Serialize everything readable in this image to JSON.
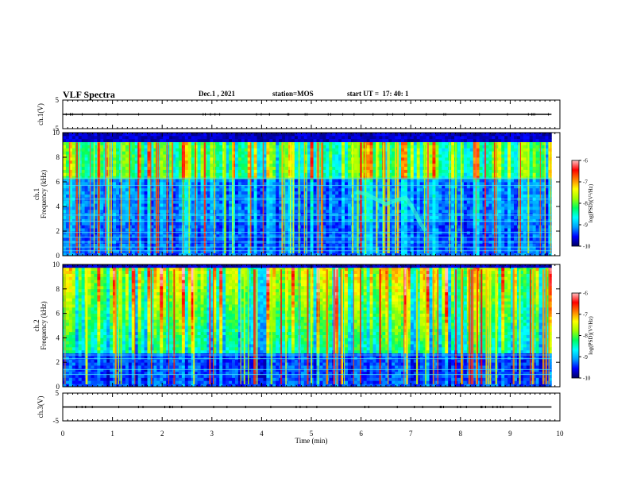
{
  "header": {
    "title": "VLF Spectra",
    "date": "Dec.1 , 2021",
    "station": "station=MOS",
    "start": "start UT =  17: 40: 1"
  },
  "colorbar": {
    "label": "log(PSD)(V²/Hz)",
    "ticks": [
      "-6",
      "-7",
      "-8",
      "-9",
      "-10"
    ],
    "range": [
      -10,
      -6
    ],
    "stops": [
      "#000060",
      "#0000ff",
      "#00a0ff",
      "#00ffff",
      "#00ff60",
      "#a0ff00",
      "#ffff00",
      "#ff8000",
      "#ff0000",
      "#ffc0c0"
    ]
  },
  "chart_data": [
    {
      "type": "line",
      "name": "ch1",
      "ylabel": "ch.1(V)",
      "ylim": [
        -5,
        5
      ],
      "ytick_labels": [
        "5",
        "-5"
      ],
      "x": [
        0,
        9.83
      ],
      "y": [
        0,
        0
      ]
    },
    {
      "type": "heatmap",
      "name": "spectrogram-ch1",
      "ylabel": "ch.1\nFrequency (kHz)",
      "ylabel_top": "ch.1",
      "ylabel_bottom": "Frequency (kHz)",
      "ylim": [
        0,
        10
      ],
      "xlim": [
        0,
        10
      ],
      "ytick_labels": [
        "0",
        "2",
        "4",
        "6",
        "8",
        "10"
      ],
      "data_xmax": 9.83,
      "zrange": [
        -10,
        -6
      ],
      "note_feature": "dispersive emission ~5.9–7.3 min from 5 to 2 kHz",
      "harmonic_lines_khz": [
        0.4,
        0.7,
        1.1,
        1.5,
        1.9,
        2.8,
        3.3,
        4.6,
        5.7,
        6.3
      ]
    },
    {
      "type": "heatmap",
      "name": "spectrogram-ch2",
      "ylabel_top": "ch.2",
      "ylabel_bottom": "Frequency (kHz)",
      "ylim": [
        0,
        10
      ],
      "xlim": [
        0,
        10
      ],
      "ytick_labels": [
        "0",
        "2",
        "4",
        "6",
        "8",
        "10"
      ],
      "data_xmax": 9.83,
      "zrange": [
        -10,
        -6
      ],
      "harmonic_lines_khz": [
        1.0,
        1.4,
        2.3,
        2.6
      ]
    },
    {
      "type": "line",
      "name": "ch3",
      "ylabel": "ch.3(V)",
      "ylim": [
        -5,
        5
      ],
      "ytick_labels": [
        "5",
        "-5"
      ],
      "x": [
        0,
        9.83
      ],
      "y": [
        0,
        0
      ],
      "xlabel": "Time (min)",
      "xlim": [
        0,
        10
      ],
      "xtick_labels": [
        "0",
        "1",
        "2",
        "3",
        "4",
        "5",
        "6",
        "7",
        "8",
        "9",
        "10"
      ]
    }
  ]
}
